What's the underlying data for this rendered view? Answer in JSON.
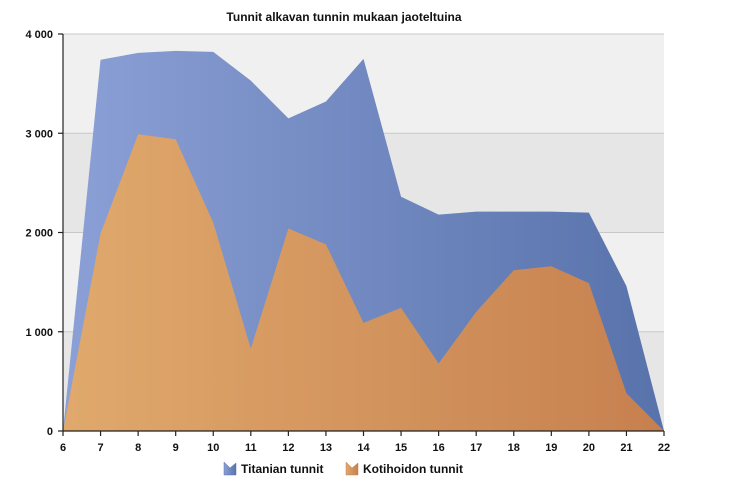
{
  "chart_data": {
    "type": "area",
    "title": "Tunnit alkavan tunnin mukaan jaoteltuina",
    "xlabel": "",
    "ylabel": "",
    "x": [
      6,
      7,
      8,
      9,
      10,
      11,
      12,
      13,
      14,
      15,
      16,
      17,
      18,
      19,
      20,
      21,
      22
    ],
    "ylim": [
      0,
      4000
    ],
    "yticks": [
      0,
      1000,
      2000,
      3000,
      4000
    ],
    "ytick_labels": [
      "0",
      "1 000",
      "2 000",
      "3 000",
      "4 000"
    ],
    "grid": true,
    "legend_position": "bottom",
    "series": [
      {
        "name": "Titanian tunnit",
        "color_light": "#8ba0d6",
        "color_dark": "#5872ab",
        "values": [
          0,
          3740,
          3810,
          3830,
          3820,
          3530,
          3150,
          3320,
          3750,
          2360,
          2180,
          2210,
          2210,
          2210,
          2200,
          1460,
          0
        ]
      },
      {
        "name": "Kotihoidon tunnit",
        "color_light": "#e0a96c",
        "color_dark": "#c6804f",
        "values": [
          0,
          1990,
          2990,
          2940,
          2100,
          830,
          2040,
          1880,
          1090,
          1240,
          680,
          1200,
          1620,
          1660,
          1490,
          380,
          0
        ]
      }
    ]
  }
}
